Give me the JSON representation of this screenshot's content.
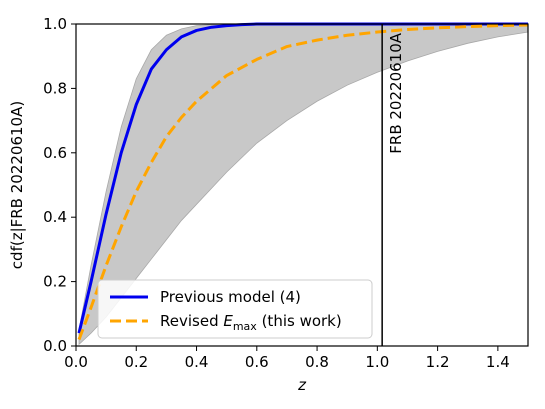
{
  "chart_data": {
    "type": "line",
    "xlabel": "z",
    "ylabel": "cdf(z|FRB 20220610A)",
    "xlim": [
      0.0,
      1.5
    ],
    "ylim": [
      0.0,
      1.0
    ],
    "x_ticks": [
      "0.0",
      "0.2",
      "0.4",
      "0.6",
      "0.8",
      "1.0",
      "1.2",
      "1.4"
    ],
    "y_ticks": [
      "0.0",
      "0.2",
      "0.4",
      "0.6",
      "0.8",
      "1.0"
    ],
    "legend_position": "lower-left",
    "series": [
      {
        "name": "Previous model (4)",
        "style": "solid",
        "color": "#0000ee",
        "x": [
          0.01,
          0.05,
          0.1,
          0.15,
          0.2,
          0.25,
          0.3,
          0.35,
          0.4,
          0.45,
          0.5,
          0.55,
          0.6,
          0.7,
          0.8,
          1.0,
          1.2,
          1.5
        ],
        "y": [
          0.04,
          0.2,
          0.41,
          0.6,
          0.75,
          0.86,
          0.92,
          0.96,
          0.98,
          0.99,
          0.995,
          0.998,
          1.0,
          1.0,
          1.0,
          1.0,
          1.0,
          1.0
        ]
      },
      {
        "name_prefix": "Revised ",
        "name_symbol": "E",
        "name_subscript": "max",
        "name_suffix": " (this work)",
        "style": "dashed",
        "color": "#ffa500",
        "x": [
          0.01,
          0.05,
          0.1,
          0.15,
          0.2,
          0.25,
          0.3,
          0.35,
          0.4,
          0.5,
          0.6,
          0.7,
          0.8,
          0.9,
          1.0,
          1.1,
          1.2,
          1.3,
          1.4,
          1.5
        ],
        "y": [
          0.02,
          0.12,
          0.25,
          0.37,
          0.48,
          0.57,
          0.65,
          0.71,
          0.76,
          0.84,
          0.89,
          0.93,
          0.95,
          0.965,
          0.975,
          0.983,
          0.988,
          0.992,
          0.995,
          0.997
        ]
      }
    ],
    "band": {
      "color": "#c8c8c8",
      "x": [
        0.01,
        0.05,
        0.1,
        0.15,
        0.2,
        0.25,
        0.3,
        0.35,
        0.4,
        0.45,
        0.5,
        0.6,
        0.7,
        0.8,
        0.9,
        1.0,
        1.1,
        1.2,
        1.3,
        1.4,
        1.5
      ],
      "upper": [
        0.05,
        0.25,
        0.48,
        0.68,
        0.83,
        0.92,
        0.965,
        0.985,
        0.995,
        0.998,
        1.0,
        1.0,
        1.0,
        1.0,
        1.0,
        1.0,
        1.0,
        1.0,
        1.0,
        1.0,
        1.0
      ],
      "lower": [
        0.005,
        0.04,
        0.09,
        0.15,
        0.21,
        0.27,
        0.33,
        0.39,
        0.44,
        0.49,
        0.54,
        0.63,
        0.7,
        0.76,
        0.81,
        0.85,
        0.885,
        0.915,
        0.94,
        0.96,
        0.975
      ]
    },
    "annotation": {
      "text": "FRB 20220610A",
      "x": 1.016
    }
  }
}
